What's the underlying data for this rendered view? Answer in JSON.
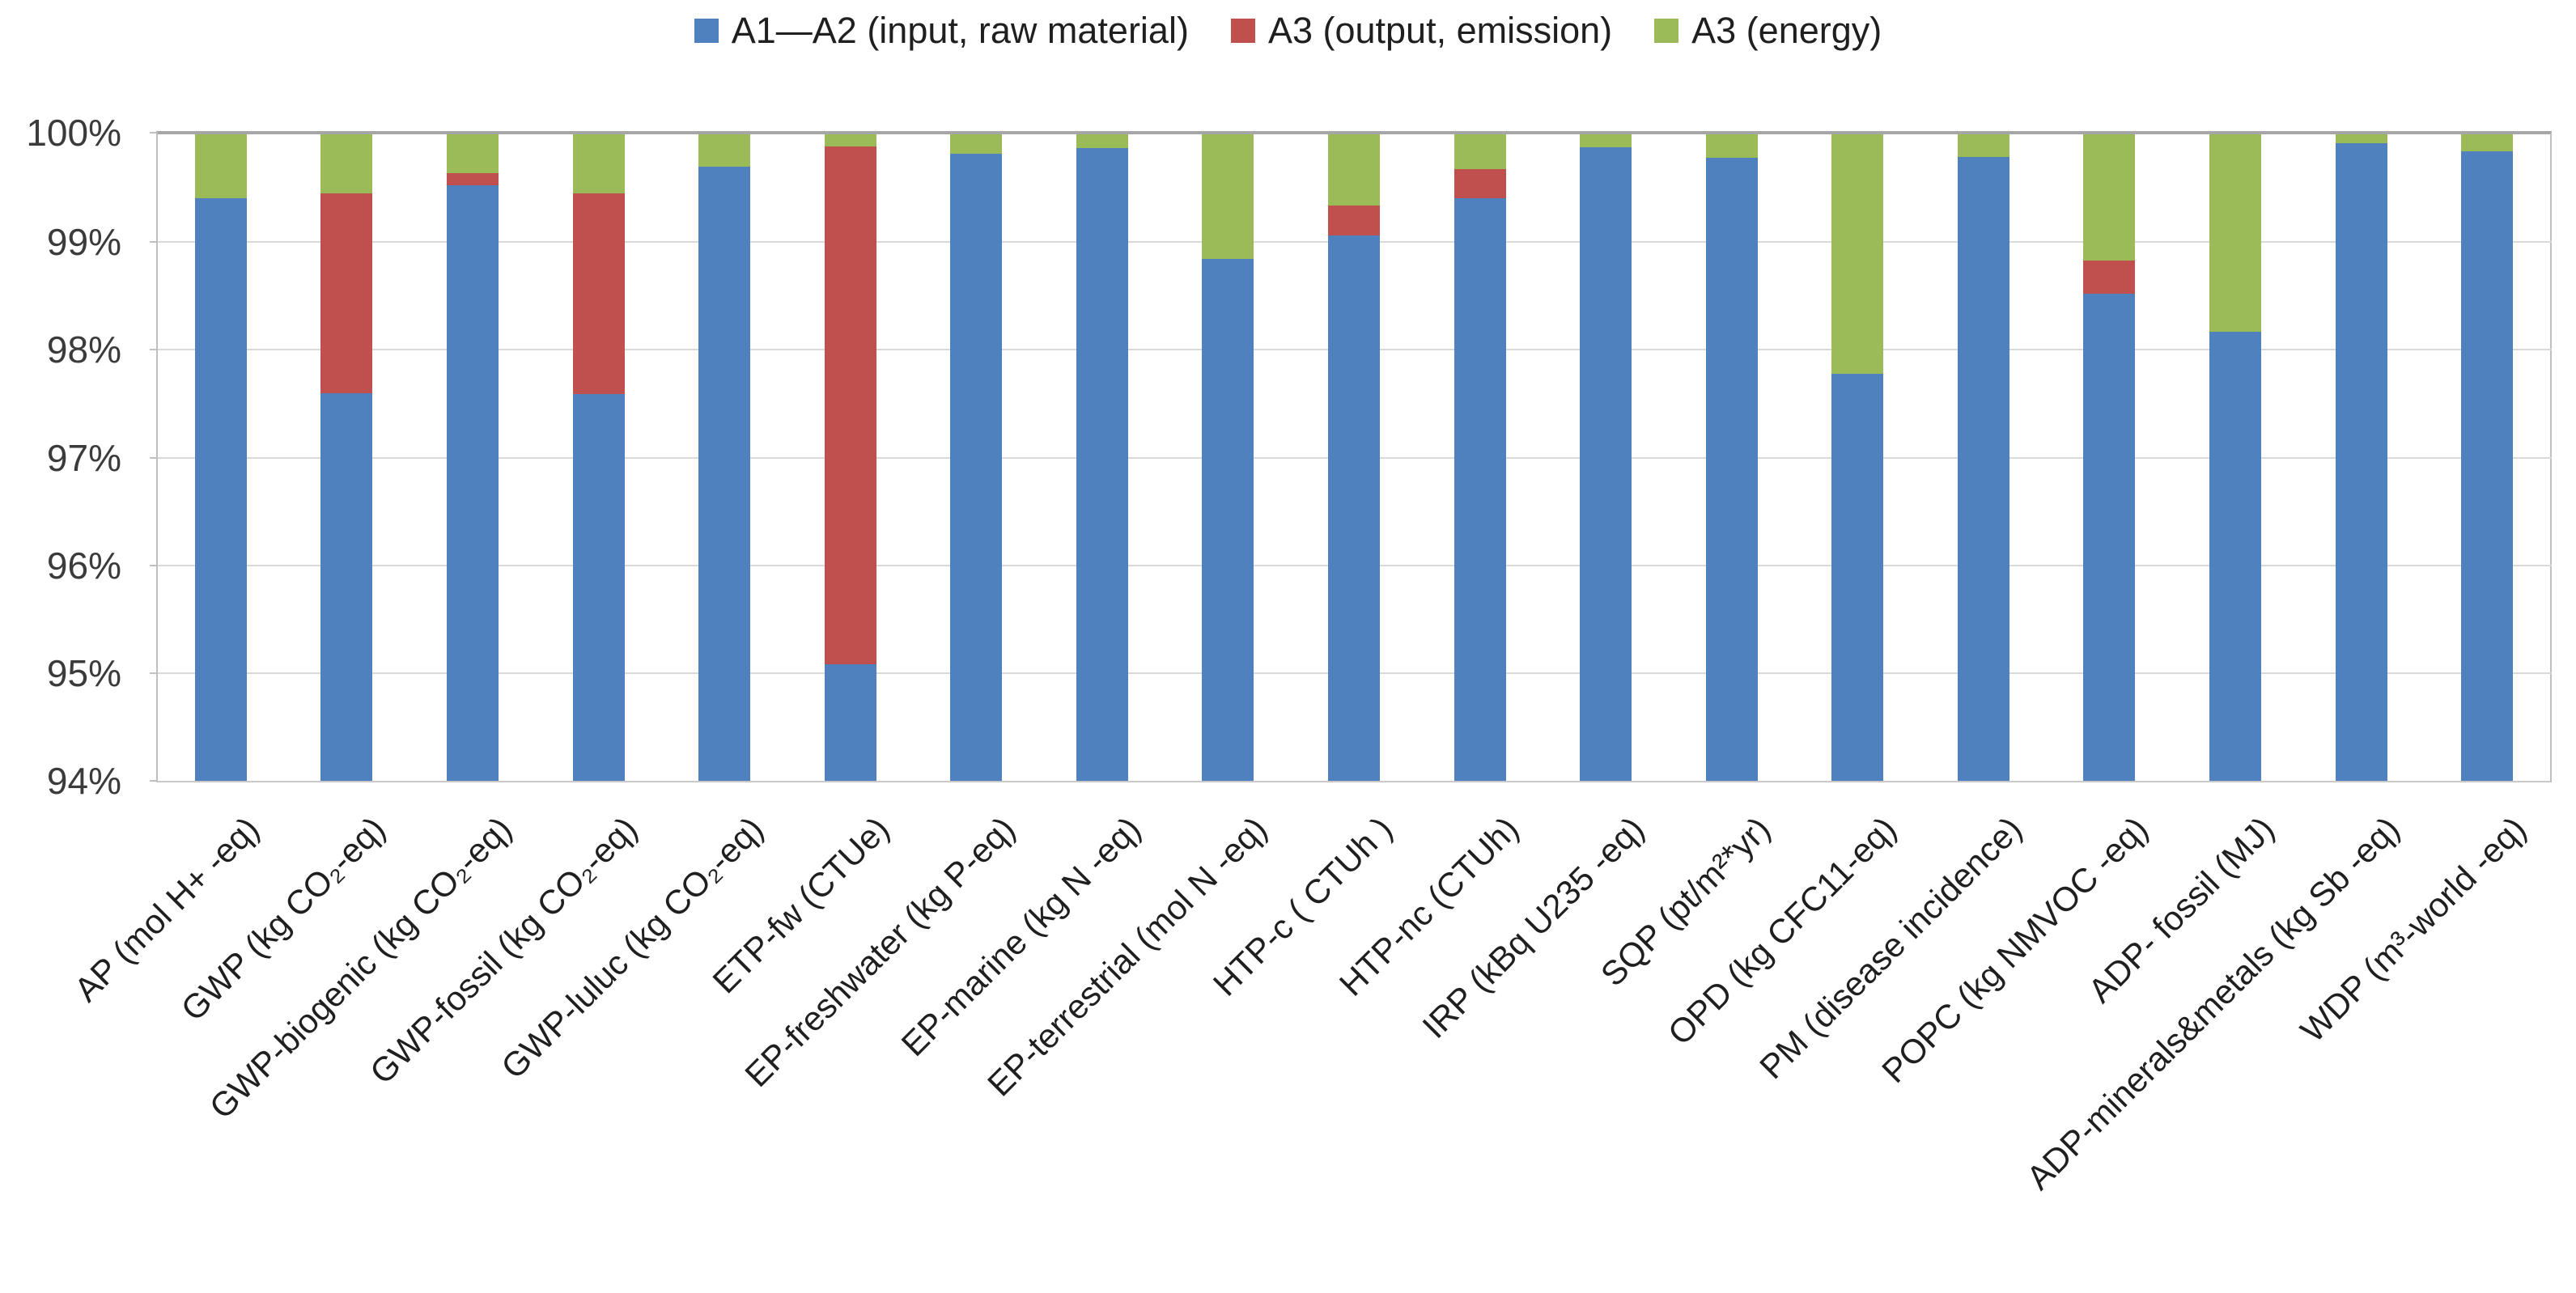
{
  "chart_data": {
    "type": "bar",
    "stacking": "percent",
    "title": "",
    "xlabel": "",
    "ylabel": "",
    "ylim": [
      94,
      100
    ],
    "grid": "horizontal",
    "legend_position": "top",
    "ytick_labels": [
      "100%",
      "99%",
      "98%",
      "97%",
      "96%",
      "95%",
      "94%"
    ],
    "categories": [
      "AP (mol H+ -eq)",
      "GWP (kg CO₂-eq)",
      "GWP-biogenic (kg CO₂-eq)",
      "GWP-fossil (kg CO₂-eq)",
      "GWP-luluc (kg CO₂-eq)",
      "ETP-fw (CTUe)",
      "EP-freshwater (kg P-eq)",
      "EP-marine (kg N -eq)",
      "EP-terrestrial (mol N -eq)",
      "HTP-c ( CTUh )",
      "HTP-nc (CTUh)",
      "IRP (kBq U235 -eq)",
      "SQP (pt/m²*yr)",
      "OPD (kg CFC11-eq)",
      "PM (disease incidence)",
      "POPC (kg NMVOC -eq)",
      "ADP- fossil (MJ)",
      "ADP-minerals&metals (kg Sb -eq)",
      "WDP (m³-world -eq)"
    ],
    "series": [
      {
        "name": "A1—A2 (input, raw material)",
        "color": "#4E81BD",
        "values": [
          99.41,
          97.6,
          99.53,
          97.59,
          99.7,
          95.08,
          99.82,
          99.87,
          98.84,
          99.06,
          99.41,
          99.88,
          99.78,
          97.78,
          99.79,
          98.52,
          98.17,
          99.92,
          99.84
        ]
      },
      {
        "name": "A3 (output, emission)",
        "color": "#C0504D",
        "values": [
          0,
          1.85,
          0.11,
          1.86,
          0,
          4.81,
          0,
          0,
          0,
          0.28,
          0.27,
          0,
          0,
          0,
          0,
          0.31,
          0,
          0,
          0
        ]
      },
      {
        "name": "A3 (energy)",
        "color": "#9BBB59",
        "values": [
          0.59,
          0.55,
          0.36,
          0.55,
          0.3,
          0.11,
          0.18,
          0.13,
          1.16,
          0.66,
          0.32,
          0.12,
          0.22,
          2.22,
          0.21,
          1.17,
          1.83,
          0.08,
          0.16
        ]
      }
    ],
    "colors": {
      "gridline": "#D9D9D9",
      "plot_border": "#A6A6A6",
      "axis_text": "#3B3B3B",
      "label_text": "#1F1F1F",
      "background": "#FFFFFF"
    }
  }
}
